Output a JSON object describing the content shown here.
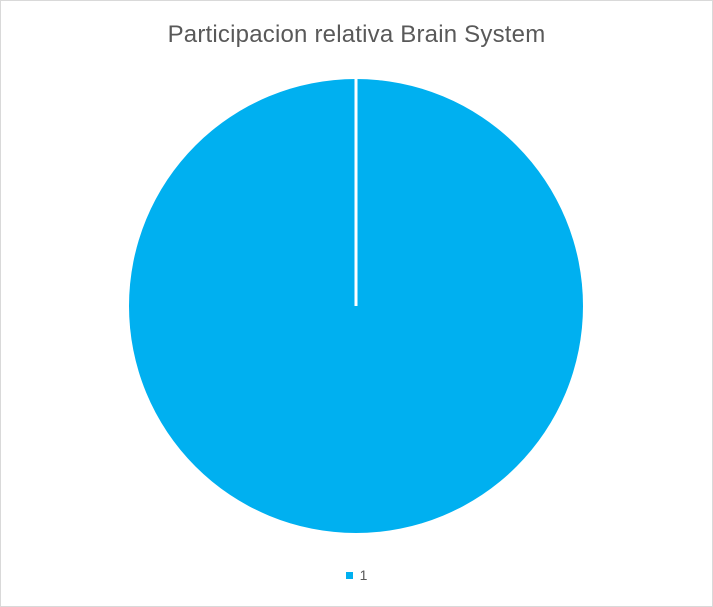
{
  "chart_data": {
    "type": "pie",
    "title": "Participacion relativa Brain System",
    "slices": [
      {
        "label": "1",
        "value": 1,
        "color": "#00b0f0"
      }
    ],
    "legend_position": "bottom",
    "slice_border_color": "#ffffff"
  }
}
